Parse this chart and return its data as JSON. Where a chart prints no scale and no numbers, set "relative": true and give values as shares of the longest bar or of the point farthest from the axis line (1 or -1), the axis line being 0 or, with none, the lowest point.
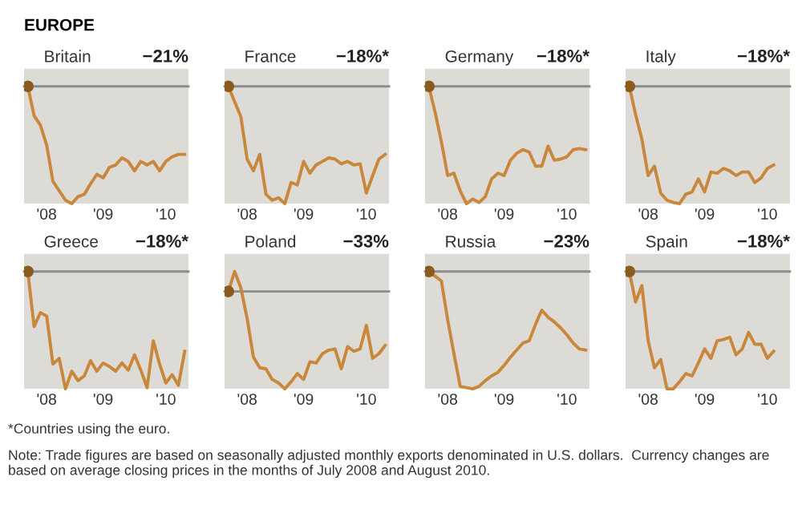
{
  "chart_data": [
    {
      "type": "line",
      "title": "Britain",
      "subtitle": "−21%",
      "relative": true,
      "annotations": [
        "EUROPE"
      ],
      "categories": [
        null,
        null,
        null,
        "'08",
        null,
        null,
        null,
        null,
        null,
        null,
        null,
        null,
        "'09",
        null,
        null,
        null,
        null,
        null,
        null,
        null,
        null,
        null,
        "'10",
        null,
        null,
        null
      ],
      "ref_lines": [
        {
          "axis": "y",
          "value": 1,
          "color": "#8c8c8c"
        }
      ],
      "series": [
        {
          "color": "#c8873a",
          "values": [
            1,
            0.75,
            0.67,
            0.5,
            0.19,
            0.11,
            0.03,
            0,
            0.06,
            0.08,
            0.17,
            0.25,
            0.22,
            0.31,
            0.33,
            0.39,
            0.36,
            0.28,
            0.36,
            0.33,
            0.36,
            0.28,
            0.36,
            0.4,
            0.42,
            0.42
          ]
        },
        {
          "type": "scatter",
          "color": "#8b5a1e",
          "values": [
            1,
            null,
            null,
            null,
            null,
            null,
            null,
            null,
            null,
            null,
            null,
            null,
            null,
            null,
            null,
            null,
            null,
            null,
            null,
            null,
            null,
            null,
            null,
            null,
            null,
            null
          ]
        }
      ]
    },
    {
      "type": "line",
      "title": "France",
      "subtitle": "−18%*",
      "relative": true,
      "categories": [
        null,
        null,
        null,
        "'08",
        null,
        null,
        null,
        null,
        null,
        null,
        null,
        null,
        "'09",
        null,
        null,
        null,
        null,
        null,
        null,
        null,
        null,
        null,
        "'10",
        null,
        null,
        null
      ],
      "ref_lines": [
        {
          "axis": "y",
          "value": 1,
          "color": "#8c8c8c"
        }
      ],
      "series": [
        {
          "color": "#c8873a",
          "values": [
            1,
            0.87,
            0.74,
            0.38,
            0.28,
            0.42,
            0.08,
            0.03,
            0.05,
            0,
            0.18,
            0.16,
            0.36,
            0.26,
            0.33,
            0.36,
            0.39,
            0.38,
            0.34,
            0.36,
            0.33,
            0.34,
            0.09,
            0.24,
            0.38,
            0.42
          ]
        },
        {
          "type": "scatter",
          "color": "#8b5a1e",
          "values": [
            1,
            null,
            null,
            null,
            null,
            null,
            null,
            null,
            null,
            null,
            null,
            null,
            null,
            null,
            null,
            null,
            null,
            null,
            null,
            null,
            null,
            null,
            null,
            null,
            null,
            null
          ]
        }
      ]
    },
    {
      "type": "line",
      "title": "Germany",
      "subtitle": "−18%*",
      "relative": true,
      "categories": [
        null,
        null,
        null,
        "'08",
        null,
        null,
        null,
        null,
        null,
        null,
        null,
        null,
        "'09",
        null,
        null,
        null,
        null,
        null,
        null,
        null,
        null,
        null,
        "'10",
        null,
        null,
        null
      ],
      "ref_lines": [
        {
          "axis": "y",
          "value": 1,
          "color": "#8c8c8c"
        }
      ],
      "series": [
        {
          "color": "#c8873a",
          "values": [
            1,
            0.78,
            0.53,
            0.24,
            0.26,
            0.11,
            0,
            0.04,
            0.01,
            0.06,
            0.21,
            0.26,
            0.24,
            0.37,
            0.43,
            0.46,
            0.44,
            0.32,
            0.32,
            0.49,
            0.37,
            0.38,
            0.4,
            0.46,
            0.47,
            0.46
          ]
        },
        {
          "type": "scatter",
          "color": "#8b5a1e",
          "values": [
            1,
            null,
            null,
            null,
            null,
            null,
            null,
            null,
            null,
            null,
            null,
            null,
            null,
            null,
            null,
            null,
            null,
            null,
            null,
            null,
            null,
            null,
            null,
            null,
            null,
            null
          ]
        }
      ]
    },
    {
      "type": "line",
      "title": "Italy",
      "subtitle": "−18%*",
      "relative": true,
      "categories": [
        null,
        null,
        null,
        "'08",
        null,
        null,
        null,
        null,
        null,
        null,
        null,
        null,
        "'09",
        null,
        null,
        null,
        null,
        null,
        null,
        null,
        null,
        null,
        "'10",
        null,
        null,
        null
      ],
      "ref_lines": [
        {
          "axis": "y",
          "value": 1,
          "color": "#8c8c8c"
        }
      ],
      "series": [
        {
          "color": "#c8873a",
          "values": [
            1,
            0.76,
            0.55,
            0.24,
            0.32,
            0.09,
            0.03,
            0.01,
            0,
            0.08,
            0.1,
            0.21,
            0.1,
            0.27,
            0.26,
            0.3,
            0.28,
            0.24,
            0.27,
            0.27,
            0.18,
            0.22,
            0.3,
            0.33,
            null,
            null
          ]
        },
        {
          "type": "scatter",
          "color": "#8b5a1e",
          "values": [
            1,
            null,
            null,
            null,
            null,
            null,
            null,
            null,
            null,
            null,
            null,
            null,
            null,
            null,
            null,
            null,
            null,
            null,
            null,
            null,
            null,
            null,
            null,
            null,
            null,
            null
          ]
        }
      ]
    },
    {
      "type": "line",
      "title": "Greece",
      "subtitle": "−18%*",
      "relative": true,
      "categories": [
        null,
        null,
        null,
        "'08",
        null,
        null,
        null,
        null,
        null,
        null,
        null,
        null,
        "'09",
        null,
        null,
        null,
        null,
        null,
        null,
        null,
        null,
        null,
        "'10",
        null,
        null,
        null
      ],
      "ref_lines": [
        {
          "axis": "y",
          "value": 1,
          "color": "#8c8c8c"
        }
      ],
      "series": [
        {
          "color": "#c8873a",
          "values": [
            1,
            0.53,
            0.65,
            0.62,
            0.21,
            0.26,
            0,
            0.15,
            0.07,
            0.11,
            0.24,
            0.15,
            0.22,
            0.19,
            0.15,
            0.22,
            0.16,
            0.29,
            0.16,
            0.01,
            0.41,
            0.21,
            0.05,
            0.12,
            0.03,
            0.32
          ]
        },
        {
          "type": "scatter",
          "color": "#8b5a1e",
          "values": [
            1,
            null,
            null,
            null,
            null,
            null,
            null,
            null,
            null,
            null,
            null,
            null,
            null,
            null,
            null,
            null,
            null,
            null,
            null,
            null,
            null,
            null,
            null,
            null,
            null,
            null
          ]
        }
      ]
    },
    {
      "type": "line",
      "title": "Poland",
      "subtitle": "−33%",
      "relative": true,
      "categories": [
        null,
        null,
        null,
        "'08",
        null,
        null,
        null,
        null,
        null,
        null,
        null,
        null,
        "'09",
        null,
        null,
        null,
        null,
        null,
        null,
        null,
        null,
        null,
        "'10",
        null,
        null,
        null
      ],
      "ref_lines": [
        {
          "axis": "y",
          "value": 0.83,
          "color": "#8c8c8c"
        }
      ],
      "series": [
        {
          "color": "#c8873a",
          "values": [
            0.83,
            1,
            0.86,
            0.6,
            0.27,
            0.18,
            0.17,
            0.08,
            0.05,
            0,
            0.06,
            0.13,
            0.08,
            0.23,
            0.22,
            0.3,
            0.33,
            0.34,
            0.17,
            0.36,
            0.32,
            0.34,
            0.54,
            0.26,
            0.3,
            0.37
          ]
        },
        {
          "type": "scatter",
          "color": "#8b5a1e",
          "values": [
            0.83,
            null,
            null,
            null,
            null,
            null,
            null,
            null,
            null,
            null,
            null,
            null,
            null,
            null,
            null,
            null,
            null,
            null,
            null,
            null,
            null,
            null,
            null,
            null,
            null,
            null
          ]
        }
      ]
    },
    {
      "type": "line",
      "title": "Russia",
      "subtitle": "−23%",
      "relative": true,
      "categories": [
        null,
        null,
        null,
        "'08",
        null,
        null,
        null,
        null,
        null,
        null,
        null,
        null,
        "'09",
        null,
        null,
        null,
        null,
        null,
        null,
        null,
        null,
        null,
        "'10",
        null,
        null,
        null
      ],
      "ref_lines": [
        {
          "axis": "y",
          "value": 1,
          "color": "#8c8c8c"
        }
      ],
      "series": [
        {
          "color": "#c8873a",
          "values": [
            1,
            0.96,
            0.92,
            0.59,
            0.3,
            0.02,
            0.01,
            0,
            0.02,
            0.07,
            0.11,
            0.14,
            0.2,
            0.27,
            0.33,
            0.39,
            0.41,
            0.55,
            0.67,
            0.61,
            0.57,
            0.52,
            0.46,
            0.39,
            0.34,
            0.33
          ]
        },
        {
          "type": "scatter",
          "color": "#8b5a1e",
          "values": [
            1,
            null,
            null,
            null,
            null,
            null,
            null,
            null,
            null,
            null,
            null,
            null,
            null,
            null,
            null,
            null,
            null,
            null,
            null,
            null,
            null,
            null,
            null,
            null,
            null,
            null
          ]
        }
      ]
    },
    {
      "type": "line",
      "title": "Spain",
      "subtitle": "−18%*",
      "relative": true,
      "annotations": [
        "*Countries using the euro.",
        "Note: Trade figures are based on seasonally adjusted monthly exports denominated in U.S. dollars.  Currency changes are based on average closing prices in the months of July 2008 and August 2010."
      ],
      "categories": [
        null,
        null,
        null,
        "'08",
        null,
        null,
        null,
        null,
        null,
        null,
        null,
        null,
        "'09",
        null,
        null,
        null,
        null,
        null,
        null,
        null,
        null,
        null,
        "'10",
        null,
        null,
        null
      ],
      "ref_lines": [
        {
          "axis": "y",
          "value": 1,
          "color": "#8c8c8c"
        }
      ],
      "series": [
        {
          "color": "#c8873a",
          "values": [
            1,
            0.74,
            0.88,
            0.41,
            0.18,
            0.25,
            0,
            0,
            0.06,
            0.13,
            0.11,
            0.22,
            0.34,
            0.26,
            0.41,
            0.42,
            0.44,
            0.29,
            0.34,
            0.48,
            0.38,
            0.38,
            0.26,
            0.32,
            null,
            null
          ]
        },
        {
          "type": "scatter",
          "color": "#8b5a1e",
          "values": [
            1,
            null,
            null,
            null,
            null,
            null,
            null,
            null,
            null,
            null,
            null,
            null,
            null,
            null,
            null,
            null,
            null,
            null,
            null,
            null,
            null,
            null,
            null,
            null,
            null,
            null
          ]
        }
      ]
    }
  ]
}
